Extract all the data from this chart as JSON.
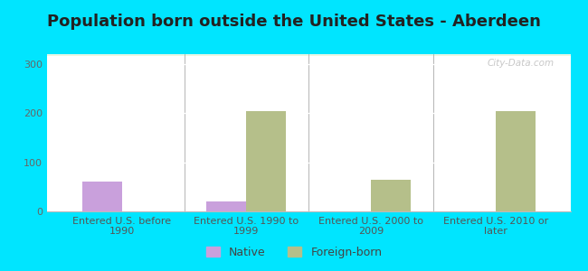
{
  "title": "Population born outside the United States - Aberdeen",
  "categories": [
    "Entered U.S. before\n1990",
    "Entered U.S. 1990 to\n1999",
    "Entered U.S. 2000 to\n2009",
    "Entered U.S. 2010 or\nlater"
  ],
  "native_values": [
    60,
    20,
    0,
    0
  ],
  "foreign_values": [
    0,
    205,
    65,
    205
  ],
  "native_color": "#c9a0dc",
  "foreign_color": "#b5bf8a",
  "background_outer": "#00e5ff",
  "ylim": [
    0,
    320
  ],
  "yticks": [
    0,
    100,
    200,
    300
  ],
  "bar_width": 0.32,
  "legend_native": "Native",
  "legend_foreign": "Foreign-born",
  "watermark": "City-Data.com",
  "title_fontsize": 13,
  "tick_fontsize": 8,
  "legend_fontsize": 9
}
